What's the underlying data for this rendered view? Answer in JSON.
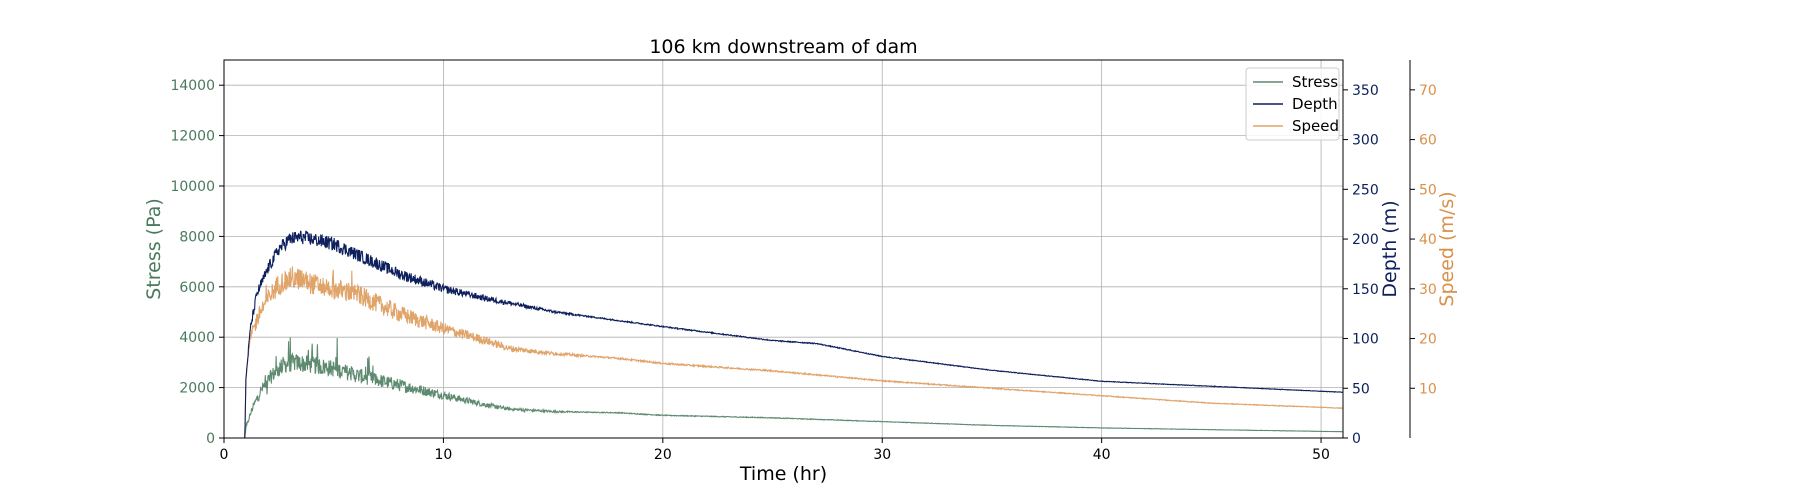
{
  "chart_data": {
    "type": "line",
    "title": "106 km downstream of dam",
    "xlabel": "Time (hr)",
    "xlim": [
      0,
      51
    ],
    "xticks": [
      0,
      10,
      20,
      30,
      40,
      50
    ],
    "grid": true,
    "legend": {
      "placement": "top-right",
      "entries": [
        "Stress",
        "Depth",
        "Speed"
      ]
    },
    "axes": {
      "stress": {
        "label": "Stress (Pa)",
        "ylim": [
          0,
          15000
        ],
        "ticks": [
          0,
          2000,
          4000,
          6000,
          8000,
          10000,
          12000,
          14000
        ],
        "color": "#4a7a5e",
        "position": "left"
      },
      "depth": {
        "label": "Depth (m)",
        "ylim": [
          0,
          380
        ],
        "ticks": [
          0,
          50,
          100,
          150,
          200,
          250,
          300,
          350
        ],
        "color": "#0d1f5c",
        "position": "right"
      },
      "speed": {
        "label": "Speed (m/s)",
        "ylim": [
          0,
          76
        ],
        "ticks": [
          10,
          20,
          30,
          40,
          50,
          60,
          70
        ],
        "color": "#d9914a",
        "position": "right-outer"
      }
    },
    "series": [
      {
        "name": "Stress",
        "axis": "stress",
        "color": "#5e8a70",
        "noise": 0.12,
        "x": [
          0,
          0.95,
          1.0,
          1.3,
          1.7,
          2.2,
          2.7,
          3.2,
          4.0,
          5.0,
          6.0,
          7.0,
          8.0,
          10.0,
          12.0,
          13.0,
          15.0,
          18.0,
          20.0,
          25.0,
          30.0,
          35.0,
          40.0,
          45.0,
          51.0
        ],
        "y": [
          0,
          0,
          400,
          1200,
          1900,
          2500,
          2900,
          3000,
          2900,
          2750,
          2500,
          2300,
          2100,
          1700,
          1300,
          1150,
          1050,
          1000,
          900,
          800,
          650,
          500,
          400,
          330,
          250
        ]
      },
      {
        "name": "Depth",
        "axis": "depth",
        "color": "#0d1f5c",
        "noise": 0.035,
        "x": [
          0,
          0.95,
          1.0,
          1.2,
          1.5,
          2.0,
          2.5,
          3.0,
          3.5,
          4.0,
          5.0,
          6.0,
          7.0,
          8.0,
          10.0,
          12.0,
          15.0,
          20.0,
          25.0,
          27.0,
          30.0,
          35.0,
          40.0,
          45.0,
          51.0
        ],
        "y": [
          0,
          0,
          60,
          110,
          145,
          170,
          190,
          200,
          202,
          200,
          195,
          185,
          175,
          165,
          150,
          140,
          127,
          112,
          98,
          95,
          82,
          68,
          57,
          52,
          46
        ]
      },
      {
        "name": "Speed",
        "axis": "speed",
        "color": "#e0a368",
        "noise": 0.07,
        "x": [
          0,
          0.95,
          1.0,
          1.2,
          1.6,
          2.0,
          2.5,
          3.0,
          3.5,
          4.0,
          5.0,
          6.0,
          7.0,
          8.0,
          10.0,
          12.0,
          13.0,
          15.0,
          18.0,
          20.0,
          25.0,
          30.0,
          35.0,
          40.0,
          45.0,
          51.0
        ],
        "y": [
          0,
          0,
          12,
          20,
          25,
          28,
          31,
          32,
          32,
          31,
          30,
          29,
          27,
          25,
          22,
          19.5,
          18,
          17,
          16,
          15,
          13.5,
          11.5,
          10,
          8.5,
          7,
          6
        ]
      }
    ]
  }
}
